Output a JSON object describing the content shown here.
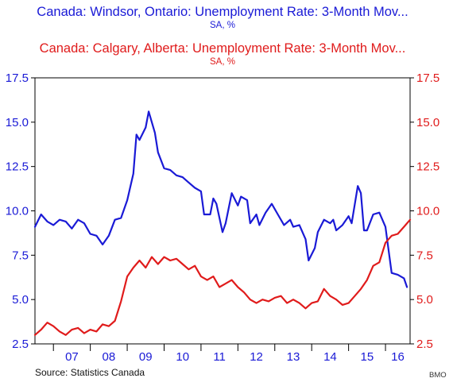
{
  "titles": {
    "series1_title": "Canada: Windsor, Ontario: Unemployment Rate: 3-Month Mov...",
    "series1_unit": "SA, %",
    "series2_title": "Canada: Calgary, Alberta: Unemployment Rate: 3-Month Mov...",
    "series2_unit": "SA, %"
  },
  "footer": {
    "source": "Source:  Statistics Canada",
    "credit": "BMO"
  },
  "colors": {
    "series1": "#1a1ad6",
    "series2": "#e01b1b",
    "axis": "#000000"
  },
  "chart_data": {
    "type": "line",
    "x_range": [
      "2006-07",
      "2016-09"
    ],
    "x_tick_labels": [
      "07",
      "08",
      "09",
      "10",
      "11",
      "12",
      "13",
      "14",
      "15",
      "16"
    ],
    "y_left": {
      "range": [
        2.5,
        17.5
      ],
      "ticks": [
        "2.5",
        "5.0",
        "7.5",
        "10.0",
        "12.5",
        "15.0",
        "17.5"
      ]
    },
    "y_right": {
      "range": [
        2.5,
        17.5
      ],
      "ticks": [
        "2.5",
        "5.0",
        "7.5",
        "10.0",
        "12.5",
        "15.0",
        "17.5"
      ]
    },
    "grid": false,
    "series": [
      {
        "name": "Canada: Windsor, Ontario: Unemployment Rate: 3-Month Mov...",
        "axis": "left",
        "points": [
          [
            "2006-07",
            9.1
          ],
          [
            "2006-09",
            9.8
          ],
          [
            "2006-11",
            9.4
          ],
          [
            "2007-01",
            9.2
          ],
          [
            "2007-03",
            9.5
          ],
          [
            "2007-05",
            9.4
          ],
          [
            "2007-07",
            9.0
          ],
          [
            "2007-09",
            9.5
          ],
          [
            "2007-11",
            9.3
          ],
          [
            "2008-01",
            8.7
          ],
          [
            "2008-03",
            8.6
          ],
          [
            "2008-05",
            8.1
          ],
          [
            "2008-07",
            8.6
          ],
          [
            "2008-09",
            9.5
          ],
          [
            "2008-11",
            9.6
          ],
          [
            "2009-01",
            10.6
          ],
          [
            "2009-03",
            12.1
          ],
          [
            "2009-04",
            14.3
          ],
          [
            "2009-05",
            14.0
          ],
          [
            "2009-07",
            14.7
          ],
          [
            "2009-08",
            15.6
          ],
          [
            "2009-10",
            14.4
          ],
          [
            "2009-11",
            13.3
          ],
          [
            "2010-01",
            12.4
          ],
          [
            "2010-03",
            12.3
          ],
          [
            "2010-05",
            12.0
          ],
          [
            "2010-07",
            11.9
          ],
          [
            "2010-09",
            11.6
          ],
          [
            "2010-11",
            11.3
          ],
          [
            "2011-01",
            11.1
          ],
          [
            "2011-02",
            9.8
          ],
          [
            "2011-04",
            9.8
          ],
          [
            "2011-05",
            10.7
          ],
          [
            "2011-06",
            10.4
          ],
          [
            "2011-08",
            8.8
          ],
          [
            "2011-09",
            9.3
          ],
          [
            "2011-11",
            11.0
          ],
          [
            "2012-01",
            10.3
          ],
          [
            "2012-02",
            10.8
          ],
          [
            "2012-04",
            10.6
          ],
          [
            "2012-05",
            9.3
          ],
          [
            "2012-07",
            9.8
          ],
          [
            "2012-08",
            9.2
          ],
          [
            "2012-10",
            9.9
          ],
          [
            "2012-12",
            10.4
          ],
          [
            "2013-02",
            9.8
          ],
          [
            "2013-04",
            9.2
          ],
          [
            "2013-06",
            9.5
          ],
          [
            "2013-07",
            9.1
          ],
          [
            "2013-09",
            9.2
          ],
          [
            "2013-11",
            8.4
          ],
          [
            "2013-12",
            7.2
          ],
          [
            "2014-02",
            7.9
          ],
          [
            "2014-03",
            8.8
          ],
          [
            "2014-05",
            9.5
          ],
          [
            "2014-07",
            9.3
          ],
          [
            "2014-08",
            9.5
          ],
          [
            "2014-09",
            8.9
          ],
          [
            "2014-11",
            9.2
          ],
          [
            "2015-01",
            9.7
          ],
          [
            "2015-02",
            9.3
          ],
          [
            "2015-04",
            11.4
          ],
          [
            "2015-05",
            11.0
          ],
          [
            "2015-06",
            8.9
          ],
          [
            "2015-07",
            8.9
          ],
          [
            "2015-09",
            9.8
          ],
          [
            "2015-11",
            9.9
          ],
          [
            "2016-01",
            9.1
          ],
          [
            "2016-02",
            7.8
          ],
          [
            "2016-03",
            6.5
          ],
          [
            "2016-05",
            6.4
          ],
          [
            "2016-07",
            6.2
          ],
          [
            "2016-08",
            5.7
          ]
        ]
      },
      {
        "name": "Canada: Calgary, Alberta: Unemployment Rate: 3-Month Mov...",
        "axis": "right",
        "points": [
          [
            "2006-07",
            3.0
          ],
          [
            "2006-09",
            3.3
          ],
          [
            "2006-11",
            3.7
          ],
          [
            "2007-01",
            3.5
          ],
          [
            "2007-03",
            3.2
          ],
          [
            "2007-05",
            3.0
          ],
          [
            "2007-07",
            3.3
          ],
          [
            "2007-09",
            3.4
          ],
          [
            "2007-11",
            3.1
          ],
          [
            "2008-01",
            3.3
          ],
          [
            "2008-03",
            3.2
          ],
          [
            "2008-05",
            3.6
          ],
          [
            "2008-07",
            3.5
          ],
          [
            "2008-09",
            3.8
          ],
          [
            "2008-11",
            4.9
          ],
          [
            "2009-01",
            6.3
          ],
          [
            "2009-03",
            6.8
          ],
          [
            "2009-05",
            7.2
          ],
          [
            "2009-07",
            6.8
          ],
          [
            "2009-09",
            7.4
          ],
          [
            "2009-11",
            7.0
          ],
          [
            "2010-01",
            7.4
          ],
          [
            "2010-03",
            7.2
          ],
          [
            "2010-05",
            7.3
          ],
          [
            "2010-07",
            7.0
          ],
          [
            "2010-09",
            6.7
          ],
          [
            "2010-11",
            6.9
          ],
          [
            "2011-01",
            6.3
          ],
          [
            "2011-03",
            6.1
          ],
          [
            "2011-05",
            6.3
          ],
          [
            "2011-07",
            5.7
          ],
          [
            "2011-09",
            5.9
          ],
          [
            "2011-11",
            6.1
          ],
          [
            "2012-01",
            5.7
          ],
          [
            "2012-03",
            5.4
          ],
          [
            "2012-05",
            5.0
          ],
          [
            "2012-07",
            4.8
          ],
          [
            "2012-09",
            5.0
          ],
          [
            "2012-11",
            4.9
          ],
          [
            "2013-01",
            5.1
          ],
          [
            "2013-03",
            5.2
          ],
          [
            "2013-05",
            4.8
          ],
          [
            "2013-07",
            5.0
          ],
          [
            "2013-09",
            4.8
          ],
          [
            "2013-11",
            4.5
          ],
          [
            "2014-01",
            4.8
          ],
          [
            "2014-03",
            4.9
          ],
          [
            "2014-05",
            5.6
          ],
          [
            "2014-07",
            5.2
          ],
          [
            "2014-09",
            5.0
          ],
          [
            "2014-11",
            4.7
          ],
          [
            "2015-01",
            4.8
          ],
          [
            "2015-03",
            5.2
          ],
          [
            "2015-05",
            5.6
          ],
          [
            "2015-07",
            6.1
          ],
          [
            "2015-09",
            6.9
          ],
          [
            "2015-11",
            7.1
          ],
          [
            "2016-01",
            8.2
          ],
          [
            "2016-03",
            8.6
          ],
          [
            "2016-05",
            8.7
          ],
          [
            "2016-07",
            9.1
          ],
          [
            "2016-09",
            9.5
          ]
        ]
      }
    ]
  }
}
